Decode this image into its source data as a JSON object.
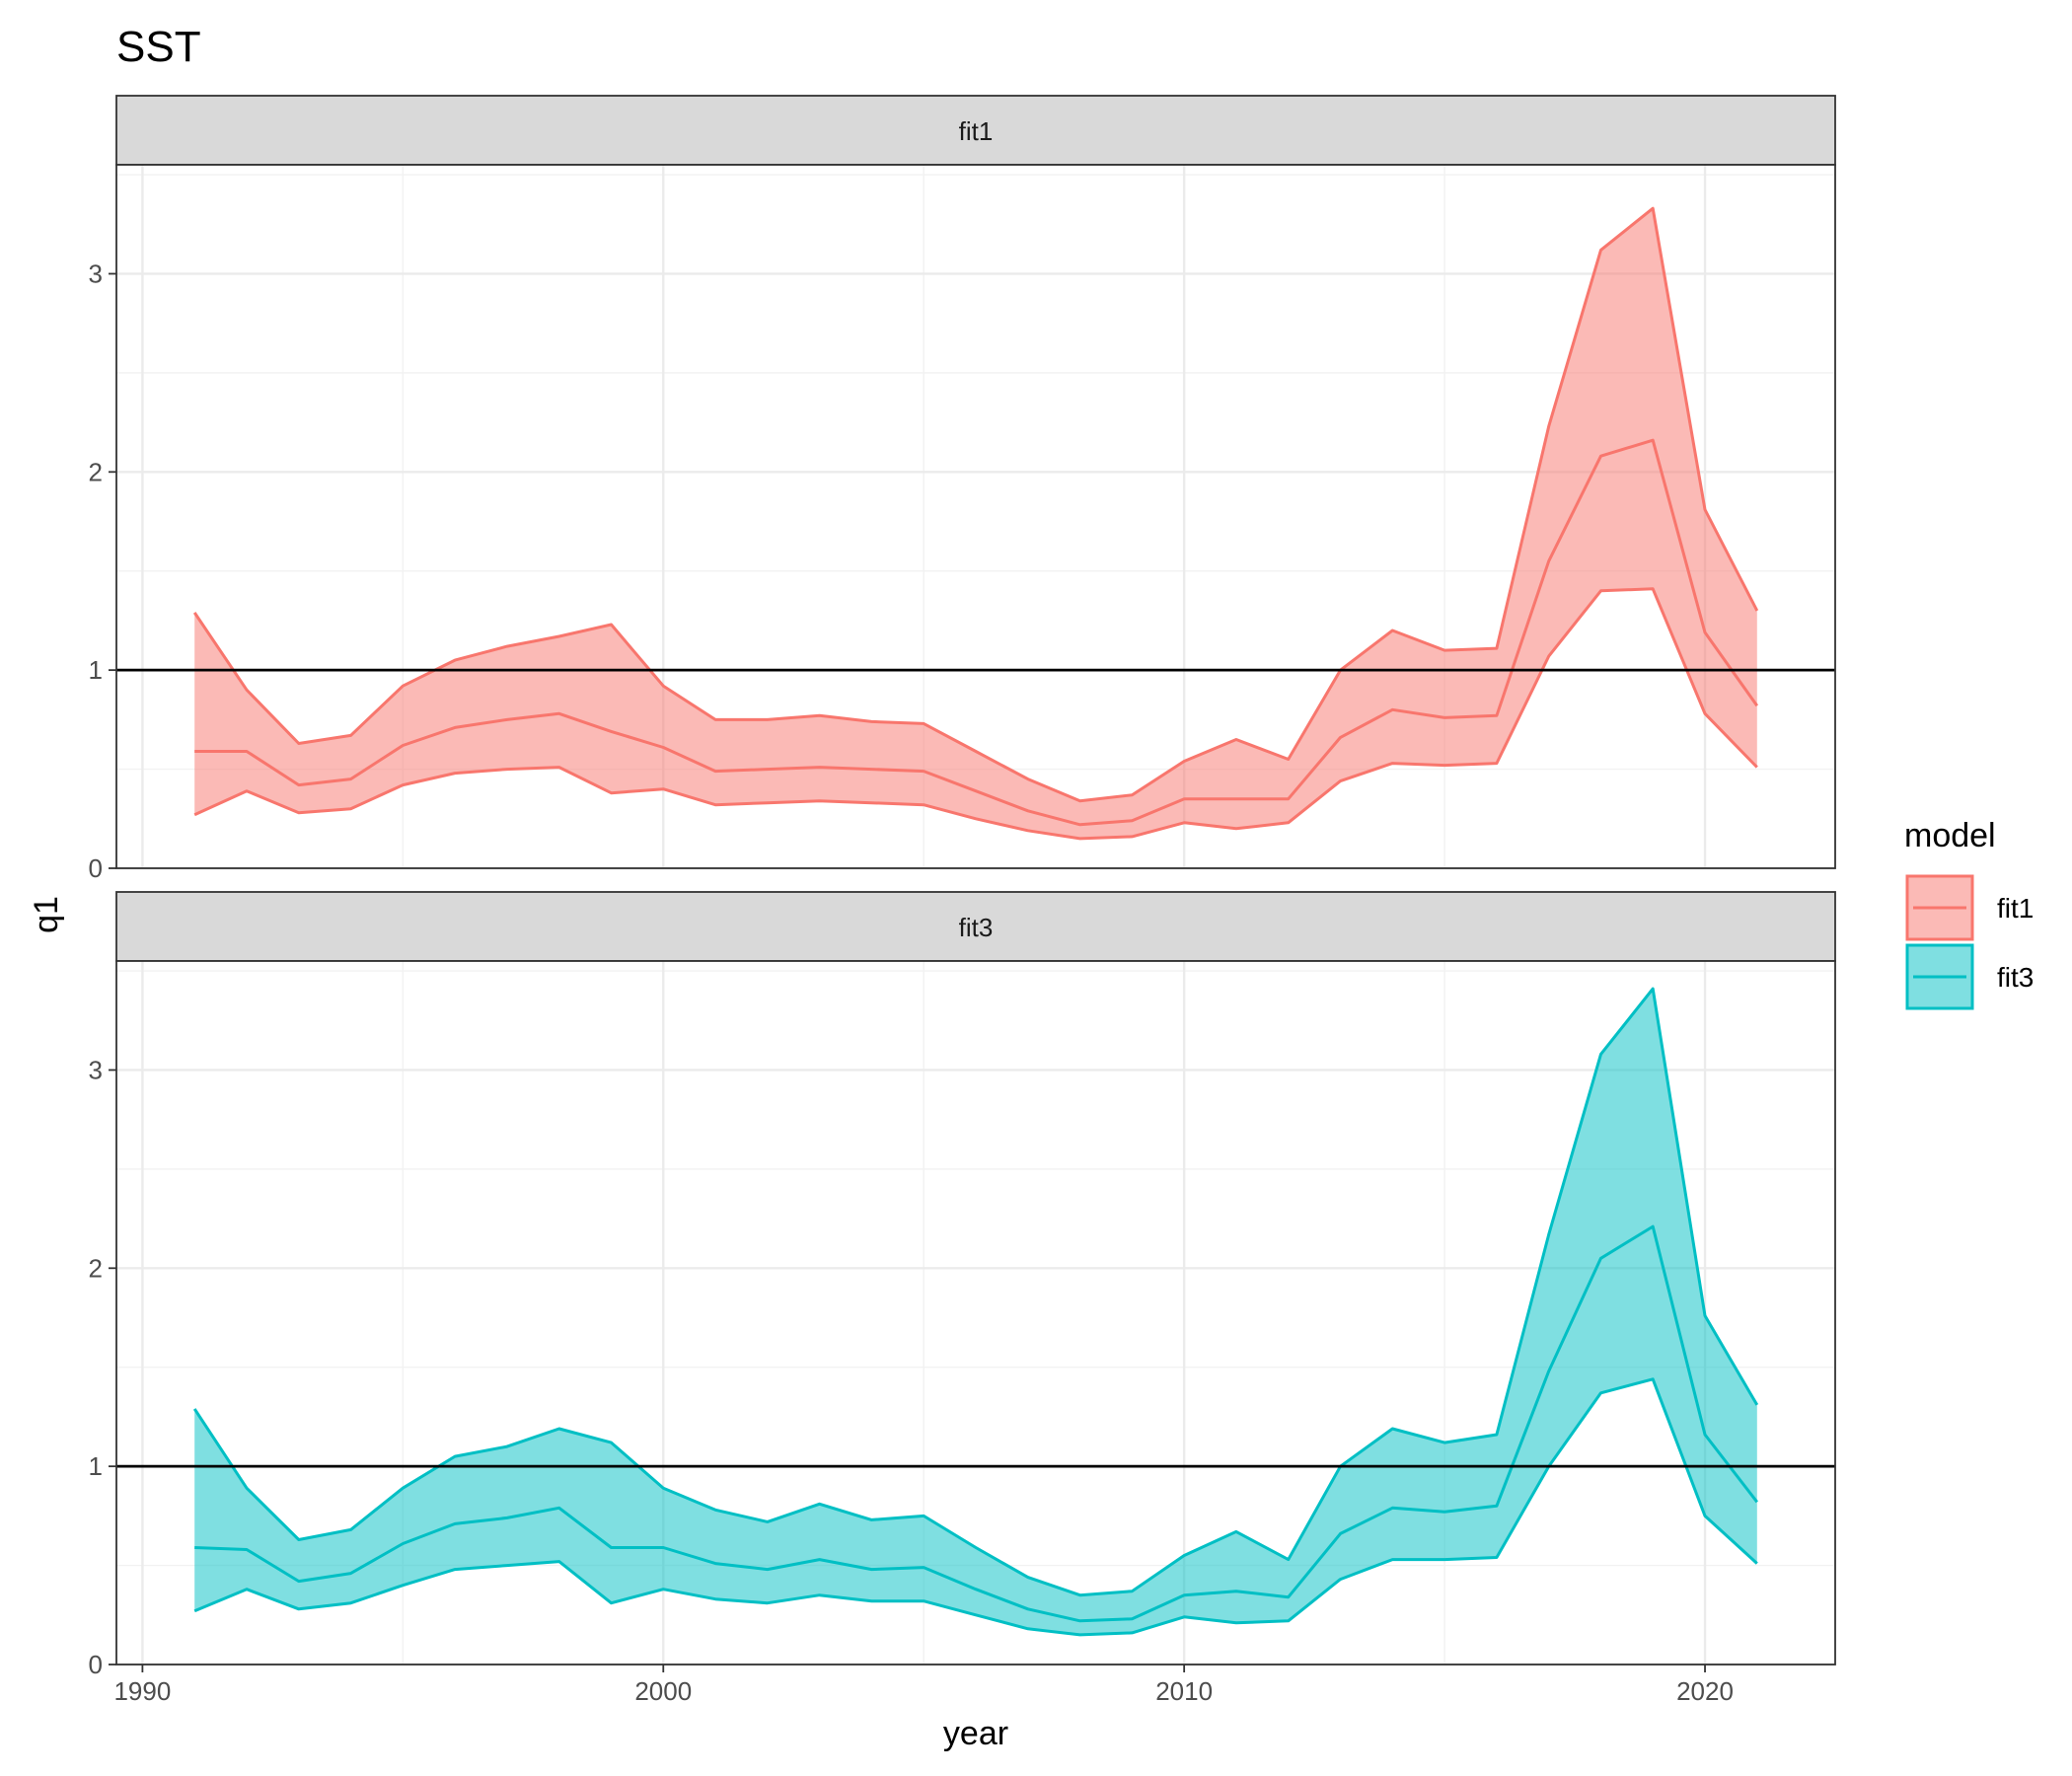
{
  "chart_data": {
    "type": "area",
    "title": "SST",
    "xlabel": "year",
    "ylabel": "q1",
    "xlim": [
      1989.5,
      2022.5
    ],
    "ylim": [
      0,
      3.55
    ],
    "x_ticks": [
      1990,
      2000,
      2010,
      2020
    ],
    "y_ticks": [
      0,
      1,
      2,
      3
    ],
    "reference_line": 1,
    "grid": true,
    "legend_title": "model",
    "legend_position": "right",
    "x": [
      1991,
      1992,
      1993,
      1994,
      1995,
      1996,
      1997,
      1998,
      1999,
      2000,
      2001,
      2002,
      2003,
      2004,
      2005,
      2006,
      2007,
      2008,
      2009,
      2010,
      2011,
      2012,
      2013,
      2014,
      2015,
      2016,
      2017,
      2018,
      2019,
      2020,
      2021
    ],
    "panels": [
      {
        "name": "fit1",
        "color": "#F8766D",
        "fill": "#F8766D",
        "mid": [
          0.59,
          0.59,
          0.42,
          0.45,
          0.62,
          0.71,
          0.75,
          0.78,
          0.69,
          0.61,
          0.49,
          0.5,
          0.51,
          0.5,
          0.49,
          0.39,
          0.29,
          0.22,
          0.24,
          0.35,
          0.35,
          0.35,
          0.66,
          0.8,
          0.76,
          0.77,
          1.55,
          2.08,
          2.16,
          1.19,
          0.82
        ],
        "upper": [
          1.29,
          0.9,
          0.63,
          0.67,
          0.92,
          1.05,
          1.12,
          1.17,
          1.23,
          0.92,
          0.75,
          0.75,
          0.77,
          0.74,
          0.73,
          0.59,
          0.45,
          0.34,
          0.37,
          0.54,
          0.65,
          0.55,
          1.0,
          1.2,
          1.1,
          1.11,
          2.23,
          3.12,
          3.33,
          1.81,
          1.3
        ],
        "lower": [
          0.27,
          0.39,
          0.28,
          0.3,
          0.42,
          0.48,
          0.5,
          0.51,
          0.38,
          0.4,
          0.32,
          0.33,
          0.34,
          0.33,
          0.32,
          0.25,
          0.19,
          0.15,
          0.16,
          0.23,
          0.2,
          0.23,
          0.44,
          0.53,
          0.52,
          0.53,
          1.07,
          1.4,
          1.41,
          0.78,
          0.51
        ]
      },
      {
        "name": "fit3",
        "color": "#00BFC4",
        "fill": "#00BFC4",
        "mid": [
          0.59,
          0.58,
          0.42,
          0.46,
          0.61,
          0.71,
          0.74,
          0.79,
          0.59,
          0.59,
          0.51,
          0.48,
          0.53,
          0.48,
          0.49,
          0.38,
          0.28,
          0.22,
          0.23,
          0.35,
          0.37,
          0.34,
          0.66,
          0.79,
          0.77,
          0.8,
          1.48,
          2.05,
          2.21,
          1.16,
          0.82
        ],
        "upper": [
          1.29,
          0.89,
          0.63,
          0.68,
          0.89,
          1.05,
          1.1,
          1.19,
          1.12,
          0.89,
          0.78,
          0.72,
          0.81,
          0.73,
          0.75,
          0.59,
          0.44,
          0.35,
          0.37,
          0.55,
          0.67,
          0.53,
          1.0,
          1.19,
          1.12,
          1.16,
          2.17,
          3.08,
          3.41,
          1.76,
          1.31
        ],
        "lower": [
          0.27,
          0.38,
          0.28,
          0.31,
          0.4,
          0.48,
          0.5,
          0.52,
          0.31,
          0.38,
          0.33,
          0.31,
          0.35,
          0.32,
          0.32,
          0.25,
          0.18,
          0.15,
          0.16,
          0.24,
          0.21,
          0.22,
          0.43,
          0.53,
          0.53,
          0.54,
          1.0,
          1.37,
          1.44,
          0.75,
          0.51
        ]
      }
    ]
  }
}
